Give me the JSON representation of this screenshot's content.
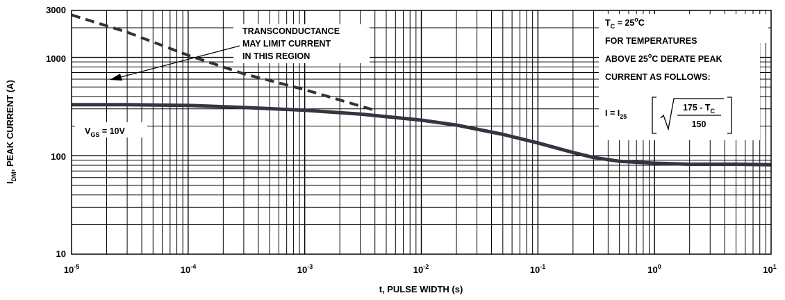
{
  "chart_data": {
    "type": "line",
    "title": "",
    "xlabel": "t, PULSE WIDTH (s)",
    "ylabel": {
      "main": "I",
      "sub": "DM",
      "rest": ", PEAK CURRENT (A)"
    },
    "x_scale": "log",
    "y_scale": "log",
    "xlim": [
      1e-05,
      10
    ],
    "ylim": [
      10,
      3000
    ],
    "grid": true,
    "x_ticks": [
      {
        "base": "10",
        "exp": "-5"
      },
      {
        "base": "10",
        "exp": "-4"
      },
      {
        "base": "10",
        "exp": "-3"
      },
      {
        "base": "10",
        "exp": "-2"
      },
      {
        "base": "10",
        "exp": "-1"
      },
      {
        "base": "10",
        "exp": "0"
      },
      {
        "base": "10",
        "exp": "1"
      }
    ],
    "y_ticks": [
      {
        "value": 10,
        "label": "10"
      },
      {
        "value": 100,
        "label": "100"
      },
      {
        "value": 1000,
        "label": "1000"
      },
      {
        "value": 3000,
        "label": "3000"
      }
    ],
    "series": [
      {
        "style": "solid",
        "x": [
          1e-05,
          3e-05,
          0.0001,
          0.0003,
          0.001,
          0.003,
          0.01,
          0.02,
          0.05,
          0.1,
          0.2,
          0.3,
          0.5,
          1,
          2,
          5,
          10
        ],
        "y": [
          330,
          330,
          325,
          310,
          290,
          265,
          230,
          205,
          165,
          135,
          108,
          96,
          88,
          84,
          82,
          82,
          81
        ]
      },
      {
        "style": "dashed",
        "x": [
          1e-05,
          3e-05,
          0.0001,
          0.0003,
          0.001,
          0.003,
          0.004
        ],
        "y": [
          2700,
          1800,
          1050,
          680,
          470,
          320,
          290
        ]
      }
    ],
    "annotations": {
      "transconductance": [
        "TRANSCONDUCTANCE",
        "MAY LIMIT CURRENT",
        "IN THIS REGION"
      ],
      "vgs": {
        "main": "V",
        "sub": "GS",
        "rest": " = 10V"
      },
      "tc": {
        "main": "T",
        "sub": "C",
        "rest": " = 25",
        "sup": "o",
        "end": "C"
      },
      "derate_line1": "FOR TEMPERATURES",
      "derate_line2": {
        "pre": "ABOVE 25",
        "sup": "o",
        "post": "C DERATE PEAK"
      },
      "derate_line3": "CURRENT AS FOLLOWS:",
      "formula": {
        "lhs": {
          "main": "I = I",
          "sub": "25"
        },
        "numerator": {
          "main": "175 - T",
          "sub": "C"
        },
        "denominator": "150"
      }
    }
  }
}
